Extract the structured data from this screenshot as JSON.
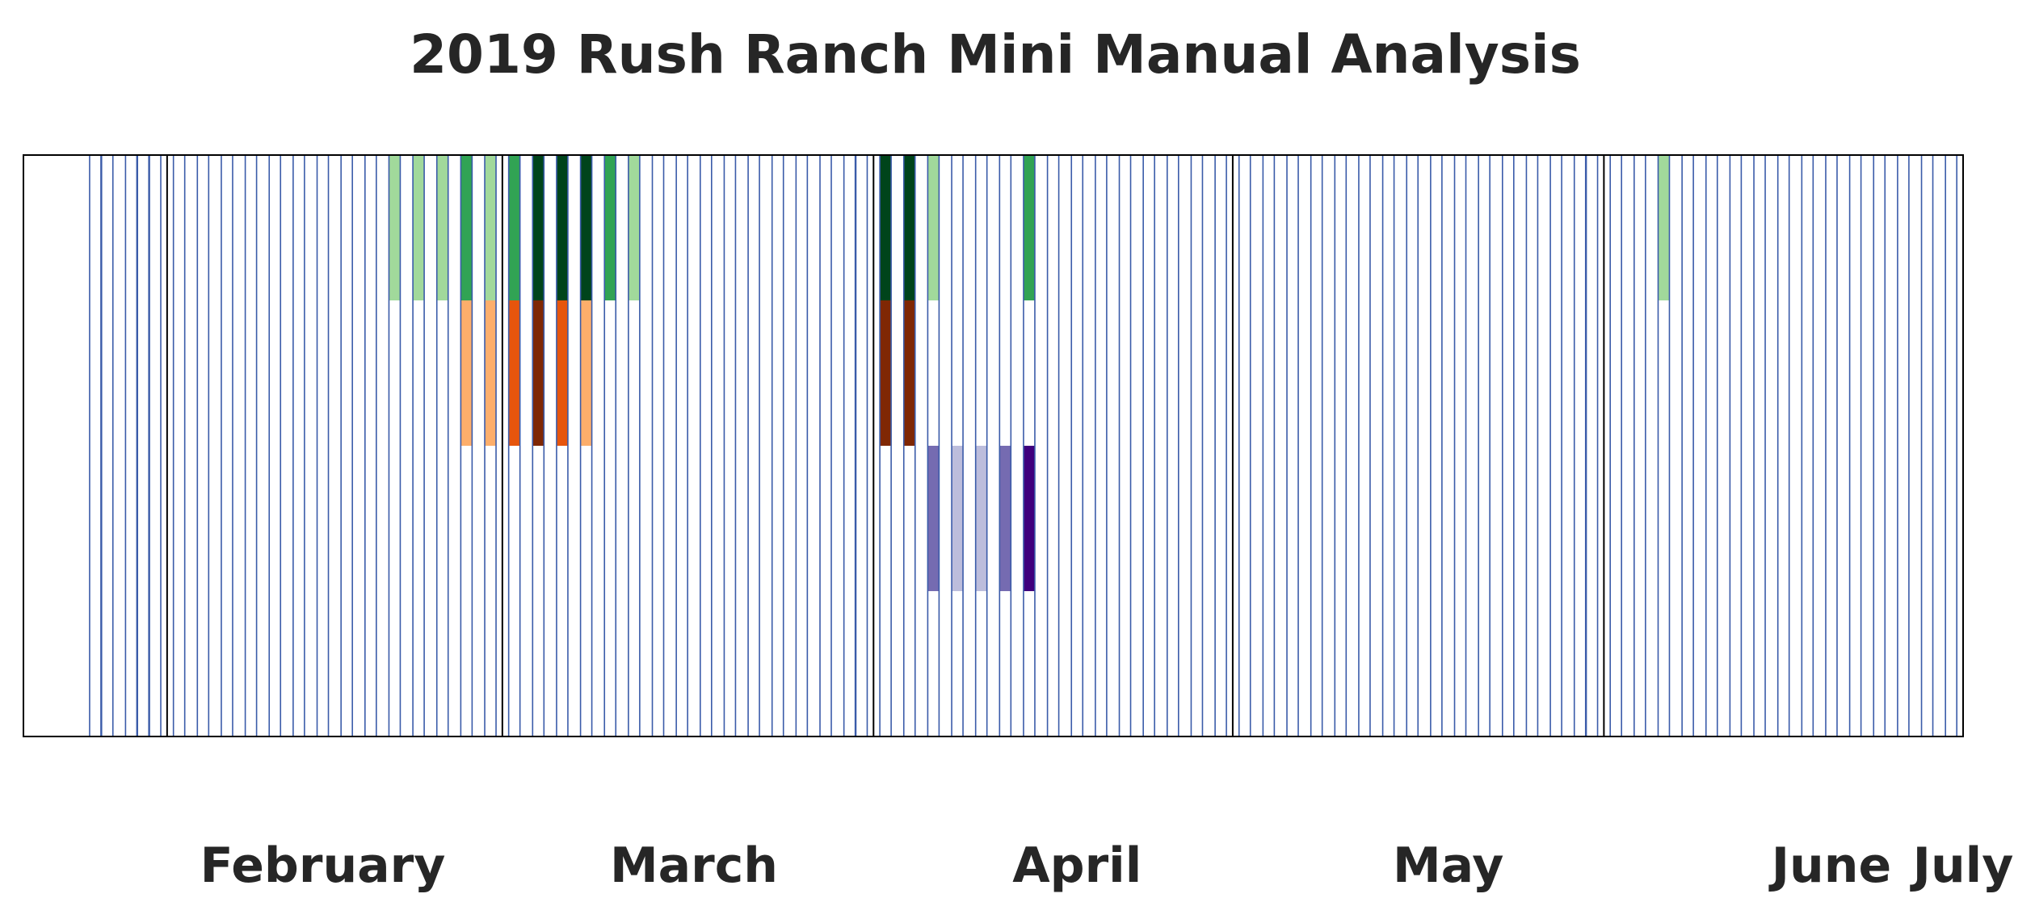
{
  "chart_data": {
    "type": "heatmap",
    "title": "2019 Rush Ranch Mini Manual Analysis",
    "xlabel": "",
    "ylabel": "",
    "x_range": [
      "2019-01-20",
      "2019-07-01"
    ],
    "month_labels": [
      {
        "label": "February",
        "date": "2019-02-14"
      },
      {
        "label": "March",
        "date": "2019-03-17"
      },
      {
        "label": "April",
        "date": "2019-04-18"
      },
      {
        "label": "May",
        "date": "2019-05-19"
      },
      {
        "label": "June",
        "date": "2019-06-20"
      },
      {
        "label": "July",
        "date": "2019-07-05"
      }
    ],
    "month_boundaries": [
      "2019-02-01",
      "2019-03-01",
      "2019-04-01",
      "2019-05-01",
      "2019-06-01",
      "2019-07-01"
    ],
    "sample_dates": [
      "2019-01-26",
      "2019-01-27",
      "2019-01-29",
      "2019-01-30",
      "2019-01-31",
      "2019-02-02",
      "2019-02-04",
      "2019-02-06",
      "2019-02-08",
      "2019-02-10",
      "2019-02-12",
      "2019-02-14",
      "2019-02-16",
      "2019-02-18",
      "2019-02-20",
      "2019-02-22",
      "2019-02-24",
      "2019-02-26",
      "2019-02-28",
      "2019-03-02",
      "2019-03-04",
      "2019-03-06",
      "2019-03-08",
      "2019-03-10",
      "2019-03-12",
      "2019-03-14",
      "2019-03-16",
      "2019-03-18",
      "2019-03-20",
      "2019-03-22",
      "2019-03-24",
      "2019-03-26",
      "2019-03-28",
      "2019-03-30",
      "2019-03-31",
      "2019-04-02",
      "2019-04-04",
      "2019-04-06",
      "2019-04-08",
      "2019-04-10",
      "2019-04-12",
      "2019-04-14",
      "2019-04-16",
      "2019-04-18",
      "2019-04-20",
      "2019-04-22",
      "2019-04-24",
      "2019-04-26",
      "2019-04-28",
      "2019-04-30",
      "2019-05-02",
      "2019-05-04",
      "2019-05-06",
      "2019-05-08",
      "2019-05-10",
      "2019-05-12",
      "2019-05-14",
      "2019-05-16",
      "2019-05-18",
      "2019-05-20",
      "2019-05-22",
      "2019-05-24",
      "2019-05-26",
      "2019-05-28",
      "2019-05-30",
      "2019-05-31",
      "2019-06-02",
      "2019-06-04",
      "2019-06-06",
      "2019-06-08",
      "2019-06-10",
      "2019-06-12",
      "2019-06-14",
      "2019-06-16",
      "2019-06-18",
      "2019-06-20",
      "2019-06-22",
      "2019-06-24",
      "2019-06-26",
      "2019-06-28",
      "2019-06-30",
      "2019-07-02",
      "2019-07-04",
      "2019-07-06"
    ],
    "rows": 4,
    "cells": [
      {
        "date": "2019-02-20",
        "row": 0,
        "color": "#a1d99b"
      },
      {
        "date": "2019-02-22",
        "row": 0,
        "color": "#a1d99b"
      },
      {
        "date": "2019-02-24",
        "row": 0,
        "color": "#a1d99b"
      },
      {
        "date": "2019-02-26",
        "row": 0,
        "color": "#31a354"
      },
      {
        "date": "2019-02-26",
        "row": 1,
        "color": "#fdae6b"
      },
      {
        "date": "2019-02-28",
        "row": 0,
        "color": "#a1d99b"
      },
      {
        "date": "2019-02-28",
        "row": 1,
        "color": "#fdae6b"
      },
      {
        "date": "2019-03-02",
        "row": 0,
        "color": "#31a354"
      },
      {
        "date": "2019-03-02",
        "row": 1,
        "color": "#e6550d"
      },
      {
        "date": "2019-03-04",
        "row": 0,
        "color": "#00441b"
      },
      {
        "date": "2019-03-04",
        "row": 1,
        "color": "#7f2704"
      },
      {
        "date": "2019-03-06",
        "row": 0,
        "color": "#00441b"
      },
      {
        "date": "2019-03-06",
        "row": 1,
        "color": "#e6550d"
      },
      {
        "date": "2019-03-08",
        "row": 0,
        "color": "#00441b"
      },
      {
        "date": "2019-03-08",
        "row": 1,
        "color": "#fdae6b"
      },
      {
        "date": "2019-03-10",
        "row": 0,
        "color": "#31a354"
      },
      {
        "date": "2019-03-12",
        "row": 0,
        "color": "#a1d99b"
      },
      {
        "date": "2019-04-02",
        "row": 0,
        "color": "#00441b"
      },
      {
        "date": "2019-04-02",
        "row": 1,
        "color": "#7f2704"
      },
      {
        "date": "2019-04-04",
        "row": 0,
        "color": "#00441b"
      },
      {
        "date": "2019-04-04",
        "row": 1,
        "color": "#7f2704"
      },
      {
        "date": "2019-04-06",
        "row": 0,
        "color": "#a1d99b"
      },
      {
        "date": "2019-04-06",
        "row": 2,
        "color": "#756bb1"
      },
      {
        "date": "2019-04-08",
        "row": 2,
        "color": "#bcbddc"
      },
      {
        "date": "2019-04-10",
        "row": 2,
        "color": "#bcbddc"
      },
      {
        "date": "2019-04-12",
        "row": 2,
        "color": "#756bb1"
      },
      {
        "date": "2019-04-14",
        "row": 0,
        "color": "#31a354"
      },
      {
        "date": "2019-04-14",
        "row": 2,
        "color": "#3f007d"
      },
      {
        "date": "2019-06-06",
        "row": 0,
        "color": "#a1d99b"
      }
    ],
    "colors": {
      "sample_line": "#3a5ba9",
      "frame": "#000000",
      "title_text": "#262626"
    }
  }
}
